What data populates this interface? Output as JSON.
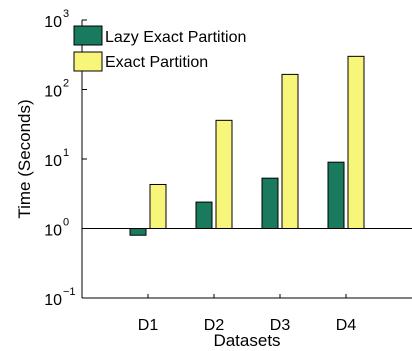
{
  "chart_data": {
    "type": "bar",
    "title": "",
    "xlabel": "Datasets",
    "ylabel": "Time (Seconds)",
    "y_scale": "log",
    "ylim": [
      0.1,
      1000
    ],
    "y_ticks": [
      {
        "value": 0.1,
        "base": "10",
        "exp": "−1"
      },
      {
        "value": 1,
        "base": "10",
        "exp": "0"
      },
      {
        "value": 10,
        "base": "10",
        "exp": "1"
      },
      {
        "value": 100,
        "base": "10",
        "exp": "2"
      },
      {
        "value": 1000,
        "base": "10",
        "exp": "3"
      }
    ],
    "categories": [
      "D1",
      "D2",
      "D3",
      "D4"
    ],
    "bars_originate_from": 1,
    "reference_line_at": 1,
    "legend_position": "top-left",
    "series": [
      {
        "name": "Lazy Exact Partition",
        "color": "#1a7a5e",
        "values": [
          0.8,
          2.4,
          5.3,
          9.0
        ]
      },
      {
        "name": "Exact Partition",
        "color": "#f7f57a",
        "values": [
          4.3,
          36,
          165,
          300
        ]
      }
    ]
  }
}
